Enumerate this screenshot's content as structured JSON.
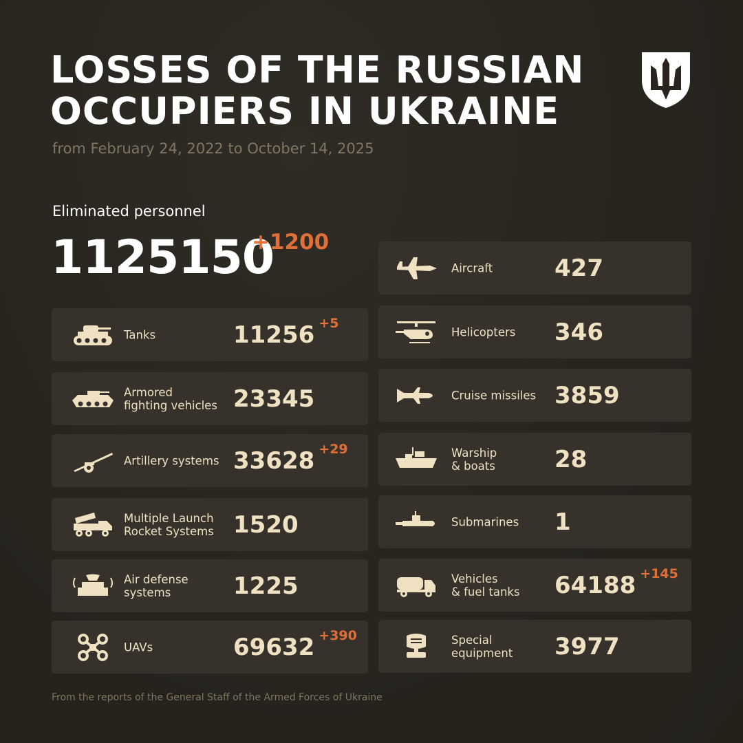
{
  "header": {
    "title_line1": "LOSSES OF THE RUSSIAN",
    "title_line2": "OCCUPIERS IN UKRAINE",
    "subtitle": "from February 24, 2022 to October 14, 2025",
    "emblem": "trident-shield-icon"
  },
  "personnel": {
    "label": "Eliminated personnel",
    "value": "1125150",
    "delta": "+1200"
  },
  "colors": {
    "background": "#28251f",
    "card": "#36322b",
    "text": "#efe1c2",
    "accent": "#e07038"
  },
  "left": [
    {
      "label": "Tanks",
      "value": "11256",
      "delta": "+5",
      "icon": "tank-icon"
    },
    {
      "label": "Armored\nfighting vehicles",
      "value": "23345",
      "delta": "",
      "icon": "armored-vehicle-icon"
    },
    {
      "label": "Artillery systems",
      "value": "33628",
      "delta": "+29",
      "icon": "artillery-icon"
    },
    {
      "label": "Multiple Launch\nRocket Systems",
      "value": "1520",
      "delta": "",
      "icon": "mlrs-icon"
    },
    {
      "label": "Air defense\nsystems",
      "value": "1225",
      "delta": "",
      "icon": "air-defense-icon"
    },
    {
      "label": "UAVs",
      "value": "69632",
      "delta": "+390",
      "icon": "drone-icon"
    }
  ],
  "right": [
    {
      "label": "Aircraft",
      "value": "427",
      "delta": "",
      "icon": "aircraft-icon"
    },
    {
      "label": "Helicopters",
      "value": "346",
      "delta": "",
      "icon": "helicopter-icon"
    },
    {
      "label": "Cruise missiles",
      "value": "3859",
      "delta": "",
      "icon": "missile-icon"
    },
    {
      "label": "Warship\n& boats",
      "value": "28",
      "delta": "",
      "icon": "warship-icon"
    },
    {
      "label": "Submarines",
      "value": "1",
      "delta": "",
      "icon": "submarine-icon"
    },
    {
      "label": "Vehicles\n& fuel tanks",
      "value": "64188",
      "delta": "+145",
      "icon": "truck-icon"
    },
    {
      "label": "Special\nequipment",
      "value": "3977",
      "delta": "",
      "icon": "special-equipment-icon"
    }
  ],
  "footer": "From the reports of the General Staff of the Armed Forces of Ukraine"
}
